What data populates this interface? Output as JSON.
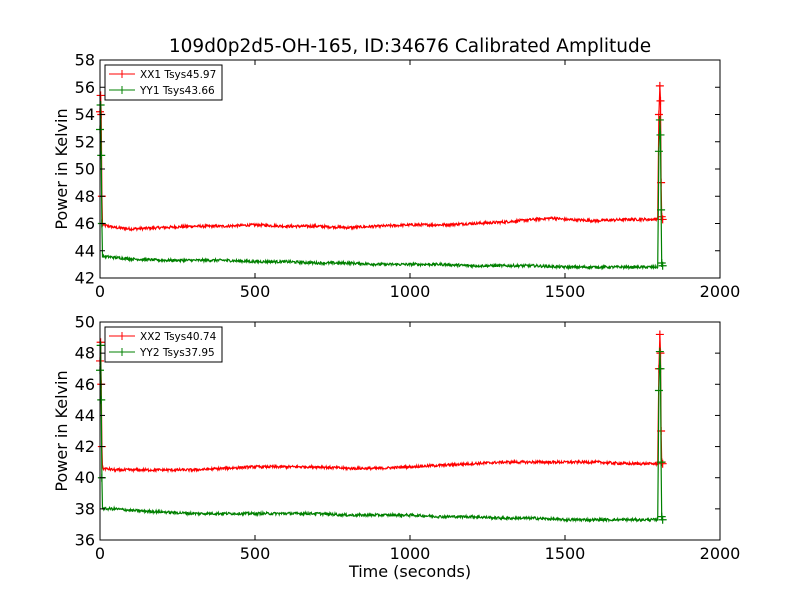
{
  "chart_data": [
    {
      "type": "line",
      "title": "109d0p2d5-OH-165, ID:34676 Calibrated Amplitude",
      "xlabel": "",
      "ylabel": "Power in Kelvin",
      "xlim": [
        0,
        2000
      ],
      "ylim": [
        42,
        58
      ],
      "xticks": [
        "0",
        "500",
        "1000",
        "1500",
        "2000"
      ],
      "yticks": [
        "42",
        "44",
        "46",
        "48",
        "50",
        "52",
        "54",
        "56",
        "58"
      ],
      "grid": false,
      "legend_position": "top-left",
      "series": [
        {
          "name": "XX1 Tsys45.97",
          "color": "#ff0000",
          "x": [
            0,
            2,
            4,
            6,
            8,
            50,
            100,
            200,
            300,
            400,
            500,
            600,
            700,
            800,
            900,
            1000,
            1100,
            1200,
            1300,
            1400,
            1460,
            1500,
            1600,
            1700,
            1790,
            1800,
            1803,
            1806,
            1808,
            1810,
            1812,
            1815
          ],
          "y": [
            54.2,
            55.4,
            54.0,
            48.0,
            45.9,
            45.7,
            45.6,
            45.7,
            45.8,
            45.8,
            45.9,
            45.8,
            45.8,
            45.7,
            45.8,
            45.9,
            45.9,
            46.0,
            46.1,
            46.3,
            46.4,
            46.3,
            46.2,
            46.3,
            46.3,
            46.4,
            54.0,
            56.1,
            55.0,
            49.0,
            46.5,
            46.3
          ]
        },
        {
          "name": "YY1 Tsys43.66",
          "color": "#008000",
          "x": [
            0,
            2,
            4,
            6,
            8,
            50,
            100,
            200,
            300,
            400,
            500,
            600,
            700,
            800,
            900,
            1000,
            1100,
            1200,
            1300,
            1400,
            1500,
            1600,
            1700,
            1790,
            1800,
            1803,
            1806,
            1808,
            1810,
            1812,
            1815
          ],
          "y": [
            52.9,
            54.7,
            51.0,
            46.0,
            43.6,
            43.5,
            43.4,
            43.3,
            43.3,
            43.3,
            43.2,
            43.2,
            43.1,
            43.1,
            43.0,
            43.0,
            43.0,
            42.9,
            42.9,
            42.9,
            42.8,
            42.8,
            42.8,
            42.8,
            42.8,
            51.3,
            53.6,
            52.5,
            47.0,
            43.1,
            42.9
          ]
        }
      ]
    },
    {
      "type": "line",
      "title": "",
      "xlabel": "Time (seconds)",
      "ylabel": "Power in Kelvin",
      "xlim": [
        0,
        2000
      ],
      "ylim": [
        36,
        50
      ],
      "xticks": [
        "0",
        "500",
        "1000",
        "1500",
        "2000"
      ],
      "yticks": [
        "36",
        "38",
        "40",
        "42",
        "44",
        "46",
        "48",
        "50"
      ],
      "grid": false,
      "legend_position": "top-left",
      "series": [
        {
          "name": "XX2 Tsys40.74",
          "color": "#ff0000",
          "x": [
            0,
            2,
            4,
            6,
            8,
            50,
            100,
            200,
            300,
            400,
            500,
            600,
            700,
            800,
            900,
            1000,
            1100,
            1200,
            1300,
            1400,
            1500,
            1600,
            1700,
            1790,
            1800,
            1803,
            1806,
            1808,
            1810,
            1812,
            1815
          ],
          "y": [
            47.5,
            48.7,
            46.0,
            42.0,
            40.6,
            40.5,
            40.5,
            40.5,
            40.5,
            40.6,
            40.7,
            40.7,
            40.7,
            40.6,
            40.6,
            40.7,
            40.8,
            40.9,
            41.0,
            41.0,
            41.0,
            41.0,
            40.9,
            40.9,
            40.9,
            47.0,
            49.2,
            48.0,
            43.0,
            41.0,
            40.9
          ]
        },
        {
          "name": "YY2 Tsys37.95",
          "color": "#008000",
          "x": [
            0,
            2,
            4,
            6,
            8,
            50,
            100,
            200,
            300,
            400,
            500,
            600,
            700,
            800,
            900,
            1000,
            1100,
            1200,
            1300,
            1400,
            1500,
            1600,
            1700,
            1790,
            1800,
            1803,
            1806,
            1808,
            1810,
            1812,
            1815
          ],
          "y": [
            46.9,
            48.5,
            45.0,
            40.0,
            38.0,
            38.0,
            37.9,
            37.8,
            37.7,
            37.7,
            37.7,
            37.7,
            37.7,
            37.6,
            37.6,
            37.6,
            37.5,
            37.5,
            37.4,
            37.4,
            37.3,
            37.3,
            37.3,
            37.3,
            37.3,
            45.6,
            48.1,
            47.0,
            41.0,
            37.5,
            37.3
          ]
        }
      ]
    }
  ]
}
